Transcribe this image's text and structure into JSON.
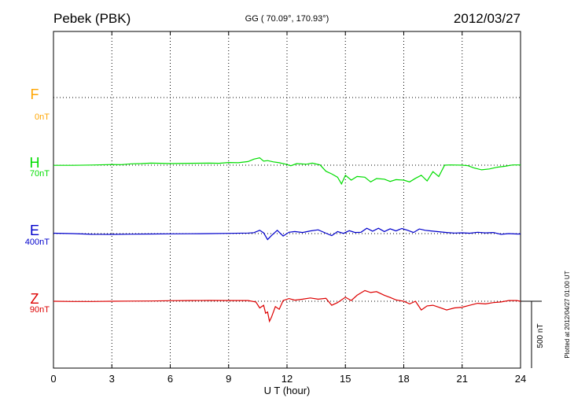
{
  "header": {
    "station": "Pebek (PBK)",
    "coords": "GG ( 70.09°, 170.93°)",
    "date": "2012/03/27"
  },
  "side_note": "Plotted at 2012/04/27 01:00 UT",
  "scale_label": "500 nT",
  "colors": {
    "F": "#ffa500",
    "H": "#00dd00",
    "E": "#0000cc",
    "Z": "#dd0000"
  },
  "chart_data": {
    "type": "line",
    "title": "Pebek (PBK)",
    "xlabel": "U T (hour)",
    "xlim": [
      0,
      24
    ],
    "xticks": [
      "0",
      "3",
      "6",
      "9",
      "12",
      "15",
      "18",
      "21",
      "24"
    ],
    "grid": true,
    "scale_bar_nT": 500,
    "series": [
      {
        "name": "F",
        "baseline_label": "0nT",
        "color": "#ffa500",
        "x": [],
        "y": []
      },
      {
        "name": "H",
        "baseline_label": "70nT",
        "color": "#00dd00",
        "x": [
          0,
          1,
          2,
          3,
          3.5,
          4,
          4.5,
          5,
          5.5,
          6,
          7,
          8,
          8.5,
          9,
          9.5,
          10,
          10.3,
          10.6,
          10.8,
          11,
          11.3,
          11.6,
          11.9,
          12.2,
          12.5,
          13,
          13.3,
          13.7,
          14,
          14.3,
          14.6,
          14.8,
          15,
          15.3,
          15.6,
          16,
          16.3,
          16.6,
          17,
          17.3,
          17.6,
          18,
          18.3,
          18.6,
          18.9,
          19.2,
          19.5,
          19.8,
          20.1,
          20.4,
          20.7,
          21,
          21.3,
          21.6,
          22,
          22.4,
          22.8,
          23.2,
          23.6,
          24
        ],
        "y": [
          -1,
          -1,
          1,
          5,
          4,
          10,
          12,
          15,
          14,
          12,
          14,
          15,
          14,
          20,
          18,
          27,
          45,
          55,
          30,
          34,
          25,
          18,
          8,
          -4,
          12,
          7,
          15,
          2,
          -45,
          -65,
          -90,
          -140,
          -75,
          -112,
          -85,
          -90,
          -125,
          -100,
          -105,
          -122,
          -108,
          -112,
          -125,
          -98,
          -75,
          -118,
          -48,
          -85,
          0,
          2,
          1,
          0,
          -4,
          -20,
          -35,
          -28,
          -15,
          -8,
          2,
          2
        ]
      },
      {
        "name": "E",
        "baseline_label": "400nT",
        "color": "#0000cc",
        "x": [
          0,
          1,
          2,
          3,
          4,
          5,
          6,
          7,
          8,
          9,
          10,
          10.3,
          10.6,
          10.8,
          11,
          11.2,
          11.5,
          11.8,
          12.1,
          12.4,
          12.8,
          13.2,
          13.6,
          14,
          14.3,
          14.6,
          14.9,
          15.2,
          15.5,
          15.8,
          16.1,
          16.4,
          16.7,
          17,
          17.3,
          17.6,
          17.9,
          18.2,
          18.5,
          18.8,
          19.1,
          19.4,
          19.8,
          20.2,
          20.6,
          21,
          21.4,
          21.8,
          22.2,
          22.6,
          23,
          23.4,
          23.8,
          24
        ],
        "y": [
          3,
          0,
          -5,
          -6,
          -4,
          -3,
          -2,
          -1,
          0,
          2,
          4,
          7,
          25,
          5,
          -45,
          -15,
          25,
          -18,
          10,
          15,
          8,
          20,
          28,
          3,
          -15,
          15,
          2,
          22,
          8,
          10,
          40,
          18,
          40,
          15,
          36,
          20,
          38,
          25,
          8,
          35,
          25,
          20,
          14,
          8,
          4,
          6,
          3,
          10,
          5,
          8,
          -5,
          0,
          -3,
          -3
        ]
      },
      {
        "name": "Z",
        "baseline_label": "90nT",
        "color": "#dd0000",
        "x": [
          0,
          1,
          2,
          3,
          4,
          5,
          6,
          7,
          8,
          9,
          10,
          10.4,
          10.6,
          10.8,
          10.9,
          11,
          11.1,
          11.2,
          11.4,
          11.6,
          11.8,
          12.1,
          12.4,
          12.8,
          13.2,
          13.6,
          14,
          14.3,
          14.6,
          15,
          15.3,
          15.6,
          16,
          16.3,
          16.6,
          17,
          17.3,
          17.6,
          18,
          18.3,
          18.6,
          18.9,
          19.2,
          19.5,
          19.8,
          20.2,
          20.6,
          21,
          21.4,
          21.8,
          22.2,
          22.6,
          23,
          23.4,
          23.8,
          24
        ],
        "y": [
          0,
          -2,
          -2,
          0,
          1,
          2,
          4,
          5,
          6,
          5,
          5,
          -5,
          -50,
          -30,
          -90,
          -80,
          -150,
          -120,
          -40,
          -60,
          5,
          20,
          8,
          15,
          25,
          15,
          22,
          -30,
          -10,
          30,
          5,
          45,
          80,
          65,
          72,
          45,
          28,
          10,
          0,
          -20,
          0,
          -65,
          -35,
          -30,
          -45,
          -65,
          -50,
          -45,
          -30,
          -15,
          -20,
          -10,
          -5,
          5,
          5,
          0
        ]
      }
    ]
  }
}
